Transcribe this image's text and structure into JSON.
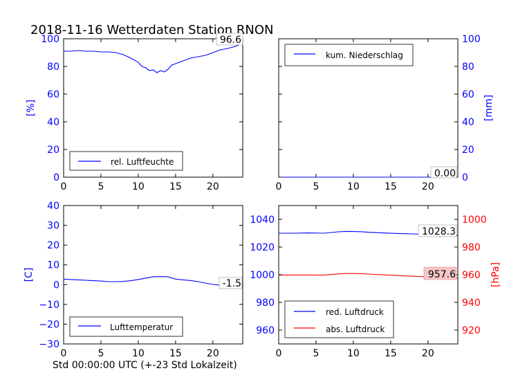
{
  "title": "2018-11-16 Wetterdaten Station RNON",
  "x_footer": "Std 00:00:00 UTC (+-23 Std Lokalzeit)",
  "colors": {
    "blue": "#0000ff",
    "red": "#ff0000",
    "black": "#000000"
  },
  "chart_data": [
    {
      "id": "humidity",
      "type": "line",
      "ylabel": "[%]",
      "xlim": [
        0,
        24
      ],
      "ylim": [
        0,
        100
      ],
      "x_ticks": [
        0,
        5,
        10,
        15,
        20
      ],
      "y_ticks": [
        0,
        20,
        40,
        60,
        80,
        100
      ],
      "legend": "rel. Luftfeuchte",
      "legend_position": "lower-left",
      "last_value_label": "96.6",
      "series": [
        {
          "name": "rel. Luftfeuchte",
          "color": "#0000ff",
          "x": [
            0,
            1,
            2,
            3,
            4,
            5,
            6,
            7,
            8,
            9,
            10,
            10.5,
            11,
            11.5,
            12,
            12.5,
            13,
            13.5,
            14,
            14.5,
            15,
            16,
            17,
            18,
            19,
            20,
            21,
            22,
            23,
            24
          ],
          "y": [
            91,
            91,
            91.5,
            91,
            91,
            90.5,
            90.5,
            90,
            88.5,
            86,
            83,
            80,
            79,
            77,
            77.5,
            75.5,
            77,
            76,
            78,
            81,
            82,
            84,
            86,
            87,
            88,
            90,
            92,
            93,
            94.5,
            96.6
          ]
        }
      ]
    },
    {
      "id": "precip",
      "type": "line",
      "ylabel": "[mm]",
      "xlim": [
        0,
        24
      ],
      "ylim": [
        0,
        100
      ],
      "x_ticks": [
        0,
        5,
        10,
        15,
        20
      ],
      "y_ticks": [
        0,
        20,
        40,
        60,
        80,
        100
      ],
      "y_axis_side": "right",
      "legend": "kum. Niederschlag",
      "legend_position": "top-left",
      "last_value_label": "0.00",
      "series": [
        {
          "name": "kum. Niederschlag",
          "color": "#0000ff",
          "x": [
            0,
            24
          ],
          "y": [
            0,
            0
          ]
        }
      ]
    },
    {
      "id": "temperature",
      "type": "line",
      "ylabel": "[C]",
      "xlim": [
        0,
        24
      ],
      "ylim": [
        -30,
        40
      ],
      "x_ticks": [
        0,
        5,
        10,
        15,
        20
      ],
      "y_ticks": [
        -30,
        -20,
        -10,
        0,
        10,
        20,
        30,
        40
      ],
      "legend": "Lufttemperatur",
      "legend_position": "lower-left",
      "last_value_label": "-1.5",
      "series": [
        {
          "name": "Lufttemperatur",
          "color": "#0000ff",
          "x": [
            0,
            1,
            2,
            3,
            4,
            5,
            6,
            7,
            8,
            9,
            10,
            11,
            12,
            13,
            14,
            15,
            16,
            17,
            18,
            19,
            20,
            21,
            22,
            23,
            24
          ],
          "y": [
            2.8,
            2.6,
            2.4,
            2.2,
            2.0,
            1.8,
            1.5,
            1.5,
            1.6,
            2.0,
            2.6,
            3.3,
            4.0,
            4.1,
            3.9,
            2.8,
            2.4,
            2.1,
            1.5,
            0.8,
            0.1,
            -0.3,
            -0.6,
            -1.0,
            -1.5
          ]
        }
      ]
    },
    {
      "id": "pressure",
      "type": "line",
      "xlim": [
        0,
        24
      ],
      "ylim": [
        950,
        1050
      ],
      "x_ticks": [
        0,
        5,
        10,
        15,
        20
      ],
      "y_ticks": [
        960,
        980,
        1000,
        1020,
        1040
      ],
      "secondary_ylabel": "[hPa]",
      "secondary_ylim": [
        910,
        1010
      ],
      "secondary_y_ticks": [
        920,
        940,
        960,
        980,
        1000
      ],
      "legend_position": "lower-left",
      "labels_pressure": [
        "1028.3",
        "957.6"
      ],
      "series": [
        {
          "name": "red. Luftdruck",
          "color": "#0000ff",
          "x": [
            0,
            2,
            4,
            6,
            7,
            8,
            9,
            10,
            11,
            12,
            14,
            16,
            18,
            20,
            22,
            24
          ],
          "y": [
            1030,
            1030,
            1030.2,
            1030,
            1030.5,
            1031,
            1031.3,
            1031.2,
            1031.1,
            1030.7,
            1030.2,
            1029.8,
            1029.5,
            1029.1,
            1028.7,
            1028.3
          ]
        },
        {
          "name": "abs. Luftdruck",
          "color": "#ff0000",
          "axis": "secondary",
          "x": [
            0,
            2,
            4,
            6,
            7,
            8,
            9,
            10,
            11,
            12,
            14,
            16,
            18,
            20,
            22,
            24
          ],
          "y": [
            959.8,
            959.8,
            959.8,
            959.7,
            960.2,
            960.6,
            960.9,
            960.9,
            960.8,
            960.5,
            959.9,
            959.4,
            958.9,
            958.5,
            958.0,
            957.6
          ]
        }
      ]
    }
  ]
}
